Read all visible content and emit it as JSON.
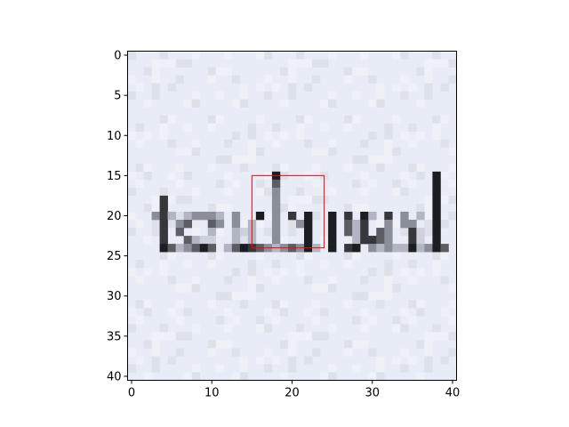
{
  "chart_data": {
    "type": "heatmap",
    "title": "",
    "xlabel": "",
    "ylabel": "",
    "image_size": [
      41,
      41
    ],
    "xlim": [
      -0.5,
      40.5
    ],
    "ylim": [
      40.5,
      -0.5
    ],
    "xticks": [
      0,
      10,
      20,
      30,
      40
    ],
    "yticks": [
      0,
      5,
      10,
      15,
      20,
      25,
      30,
      35,
      40
    ],
    "xtick_labels": [
      "0",
      "10",
      "20",
      "30",
      "40"
    ],
    "ytick_labels": [
      "0",
      "5",
      "10",
      "15",
      "20",
      "25",
      "30",
      "35",
      "40"
    ],
    "background_color": "#e8ecf6",
    "ink_colors": [
      "#1a1e22",
      "#34383c",
      "#5a5e64",
      "#8a8e98",
      "#b2b6c2",
      "#cdd1dc"
    ],
    "pixel_image_rows": [
      {
        "row": 15,
        "pixels": [
          [
            18,
            0
          ],
          [
            38,
            0
          ]
        ]
      },
      {
        "row": 16,
        "pixels": [
          [
            18,
            2
          ],
          [
            38,
            0
          ]
        ]
      },
      {
        "row": 17,
        "pixels": [
          [
            18,
            3
          ],
          [
            38,
            0
          ]
        ]
      },
      {
        "row": 18,
        "pixels": [
          [
            4,
            1
          ],
          [
            18,
            3
          ],
          [
            38,
            0
          ]
        ]
      },
      {
        "row": 19,
        "pixels": [
          [
            4,
            1
          ],
          [
            18,
            3
          ],
          [
            38,
            0
          ]
        ]
      },
      {
        "row": 20,
        "pixels": [
          [
            3,
            3
          ],
          [
            4,
            1
          ],
          [
            5,
            4
          ],
          [
            7,
            4
          ],
          [
            8,
            3
          ],
          [
            9,
            3
          ],
          [
            10,
            3
          ],
          [
            11,
            4
          ],
          [
            13,
            3
          ],
          [
            16,
            0
          ],
          [
            18,
            3
          ],
          [
            20,
            1
          ],
          [
            22,
            0
          ],
          [
            25,
            0
          ],
          [
            27,
            1
          ],
          [
            29,
            0
          ],
          [
            30,
            4
          ],
          [
            32,
            1
          ],
          [
            34,
            3
          ],
          [
            36,
            4
          ],
          [
            38,
            0
          ]
        ]
      },
      {
        "row": 21,
        "pixels": [
          [
            4,
            1
          ],
          [
            6,
            3
          ],
          [
            7,
            2
          ],
          [
            10,
            2
          ],
          [
            11,
            3
          ],
          [
            13,
            3
          ],
          [
            15,
            4
          ],
          [
            18,
            3
          ],
          [
            21,
            3
          ],
          [
            22,
            0
          ],
          [
            25,
            0
          ],
          [
            27,
            2
          ],
          [
            28,
            4
          ],
          [
            29,
            1
          ],
          [
            32,
            3
          ],
          [
            34,
            3
          ],
          [
            35,
            3
          ],
          [
            38,
            0
          ]
        ]
      },
      {
        "row": 22,
        "pixels": [
          [
            4,
            1
          ],
          [
            6,
            2
          ],
          [
            10,
            4
          ],
          [
            13,
            4
          ],
          [
            14,
            5
          ],
          [
            15,
            4
          ],
          [
            18,
            3
          ],
          [
            22,
            0
          ],
          [
            25,
            0
          ],
          [
            27,
            2
          ],
          [
            28,
            4
          ],
          [
            29,
            1
          ],
          [
            31,
            2
          ],
          [
            32,
            3
          ],
          [
            35,
            1
          ],
          [
            36,
            5
          ],
          [
            38,
            0
          ]
        ]
      },
      {
        "row": 23,
        "pixels": [
          [
            4,
            1
          ],
          [
            7,
            2
          ],
          [
            8,
            4
          ],
          [
            9,
            5
          ],
          [
            10,
            5
          ],
          [
            13,
            4
          ],
          [
            15,
            4
          ],
          [
            18,
            3
          ],
          [
            22,
            0
          ],
          [
            25,
            0
          ],
          [
            28,
            4
          ],
          [
            29,
            1
          ],
          [
            30,
            1
          ],
          [
            31,
            2
          ],
          [
            32,
            3
          ],
          [
            35,
            1
          ],
          [
            36,
            5
          ],
          [
            38,
            0
          ]
        ]
      },
      {
        "row": 24,
        "pixels": [
          [
            4,
            0
          ],
          [
            5,
            2
          ],
          [
            6,
            4
          ],
          [
            7,
            3
          ],
          [
            8,
            2
          ],
          [
            9,
            0
          ],
          [
            10,
            2
          ],
          [
            12,
            4
          ],
          [
            13,
            2
          ],
          [
            14,
            0
          ],
          [
            15,
            1
          ],
          [
            16,
            2
          ],
          [
            17,
            3
          ],
          [
            18,
            4
          ],
          [
            19,
            3
          ],
          [
            20,
            2
          ],
          [
            21,
            3
          ],
          [
            22,
            0
          ],
          [
            23,
            4
          ],
          [
            25,
            0
          ],
          [
            27,
            1
          ],
          [
            28,
            0
          ],
          [
            30,
            3
          ],
          [
            31,
            4
          ],
          [
            32,
            3
          ],
          [
            33,
            4
          ],
          [
            34,
            4
          ],
          [
            35,
            0
          ],
          [
            36,
            4
          ],
          [
            37,
            3
          ],
          [
            38,
            0
          ],
          [
            39,
            2
          ]
        ]
      }
    ],
    "annotation": {
      "shape": "rectangle",
      "color": "#ff0000",
      "x_range": [
        15,
        24
      ],
      "y_range": [
        15,
        24
      ]
    }
  }
}
